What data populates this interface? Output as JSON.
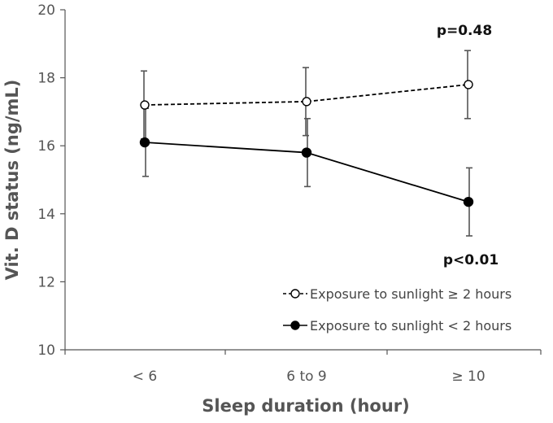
{
  "chart_data": {
    "type": "line",
    "title": "",
    "xlabel": "Sleep duration (hour)",
    "ylabel": "Vit. D status (ng/mL)",
    "categories": [
      "< 6",
      "6 to 9",
      "≥ 10"
    ],
    "ylim": [
      10,
      20
    ],
    "yticks": [
      "10",
      "12",
      "14",
      "16",
      "18",
      "20"
    ],
    "grid": false,
    "legend_position": "bottom-right",
    "series": [
      {
        "name": "Exposure to sunlight ≥ 2 hours",
        "values": [
          17.2,
          17.3,
          17.8
        ],
        "error": [
          1.0,
          1.0,
          1.0
        ],
        "line_style": "dashed",
        "marker": "open-circle",
        "color": "#000000",
        "annotation": "p=0.48"
      },
      {
        "name": "Exposure to sunlight < 2 hours",
        "values": [
          16.1,
          15.8,
          14.35
        ],
        "error": [
          1.0,
          1.0,
          1.0
        ],
        "line_style": "solid",
        "marker": "filled-circle",
        "color": "#000000",
        "annotation": "p<0.01"
      }
    ],
    "errorbar_color": "#555555",
    "axis_color": "#555555"
  }
}
